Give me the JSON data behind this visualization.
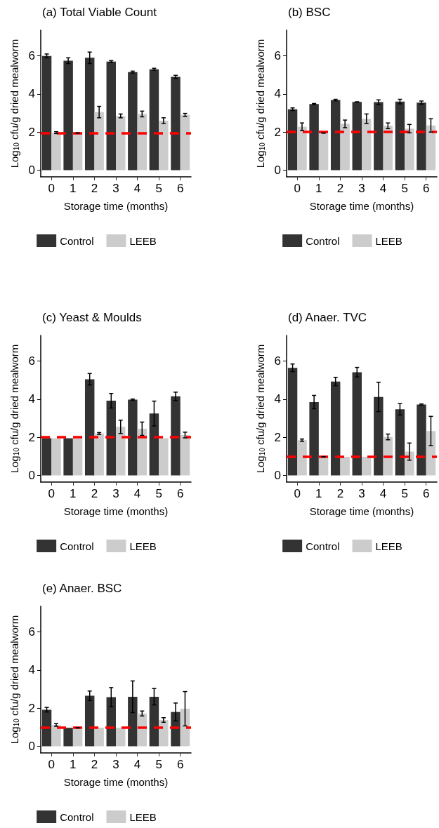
{
  "chart_data": [
    {
      "type": "bar",
      "title": "(a) Total Viable Count",
      "xlabel": "Storage time (months)",
      "ylabel": "Log$_{10}$ cfu/g dried mealworm",
      "categories": [
        "0",
        "1",
        "2",
        "3",
        "4",
        "5",
        "6"
      ],
      "series": [
        {
          "name": "Control",
          "color": "#333333",
          "values": [
            6.0,
            5.75,
            5.9,
            5.7,
            5.15,
            5.3,
            4.9
          ],
          "errors": [
            0.1,
            0.15,
            0.3,
            0.05,
            0.05,
            0.05,
            0.08
          ]
        },
        {
          "name": "LEEB",
          "color": "#cccccc",
          "values": [
            1.97,
            1.95,
            3.05,
            2.85,
            2.95,
            2.6,
            2.9
          ],
          "errors": [
            0.05,
            0.01,
            0.3,
            0.1,
            0.15,
            0.15,
            0.08
          ]
        }
      ],
      "ylim": [
        -0.35,
        7.35
      ],
      "yticks": [
        0,
        2,
        4,
        6
      ],
      "ref_lines": [
        {
          "axis": "y",
          "value": 1.95,
          "color": "#ff0000",
          "line_style": "dashed"
        }
      ],
      "legend": "bottom",
      "grid": false
    },
    {
      "type": "bar",
      "title": "(b) BSC",
      "xlabel": "Storage time (months)",
      "ylabel": "Log$_{10}$ cfu/g dried mealworm",
      "categories": [
        "0",
        "1",
        "2",
        "3",
        "4",
        "5",
        "6"
      ],
      "series": [
        {
          "name": "Control",
          "color": "#333333",
          "values": [
            3.2,
            3.47,
            3.68,
            3.58,
            3.57,
            3.6,
            3.55
          ],
          "errors": [
            0.07,
            0.03,
            0.04,
            0.01,
            0.12,
            0.12,
            0.08
          ]
        },
        {
          "name": "LEEB",
          "color": "#cccccc",
          "values": [
            2.28,
            1.95,
            2.43,
            2.7,
            2.33,
            2.18,
            2.35
          ],
          "errors": [
            0.2,
            0.01,
            0.2,
            0.25,
            0.15,
            0.22,
            0.35
          ]
        }
      ],
      "ylim": [
        -0.35,
        7.35
      ],
      "yticks": [
        0,
        2,
        4,
        6
      ],
      "ref_lines": [
        {
          "axis": "y",
          "value": 2.0,
          "color": "#ff0000",
          "line_style": "dashed"
        }
      ],
      "legend": "bottom",
      "grid": false
    },
    {
      "type": "bar",
      "title": "(c) Yeast & Moulds",
      "xlabel": "Storage time (months)",
      "ylabel": "Log$_{10}$ cfu/g dried mealworm",
      "categories": [
        "0",
        "1",
        "2",
        "3",
        "4",
        "5",
        "6"
      ],
      "series": [
        {
          "name": "Control",
          "color": "#333333",
          "values": [
            1.95,
            1.95,
            5.05,
            3.92,
            3.98,
            3.25,
            4.15
          ],
          "errors": [
            null,
            null,
            0.3,
            0.38,
            0.03,
            0.65,
            0.22
          ]
        },
        {
          "name": "LEEB",
          "color": "#cccccc",
          "values": [
            1.95,
            1.95,
            2.2,
            2.55,
            2.45,
            1.95,
            2.12
          ],
          "errors": [
            null,
            null,
            0.05,
            0.35,
            0.35,
            null,
            0.15
          ]
        }
      ],
      "ylim": [
        -0.35,
        7.35
      ],
      "yticks": [
        0,
        2,
        4,
        6
      ],
      "ref_lines": [
        {
          "axis": "y",
          "value": 2.0,
          "color": "#ff0000",
          "line_style": "dashed"
        }
      ],
      "legend": "bottom",
      "grid": false
    },
    {
      "type": "bar",
      "title": "(d) Anaer. TVC",
      "xlabel": "Storage time (months)",
      "ylabel": "Log$_{10}$ cfu/g dried mealworm",
      "categories": [
        "0",
        "1",
        "2",
        "3",
        "4",
        "5",
        "6"
      ],
      "series": [
        {
          "name": "Control",
          "color": "#333333",
          "values": [
            5.65,
            3.85,
            4.93,
            5.42,
            4.12,
            3.47,
            3.72
          ],
          "errors": [
            0.2,
            0.35,
            0.22,
            0.25,
            0.77,
            0.3,
            0.03
          ]
        },
        {
          "name": "LEEB",
          "color": "#cccccc",
          "values": [
            1.85,
            0.98,
            0.98,
            0.98,
            2.02,
            1.25,
            2.33
          ],
          "errors": [
            0.06,
            0.01,
            null,
            null,
            0.15,
            0.45,
            0.77
          ]
        }
      ],
      "ylim": [
        -0.35,
        7.35
      ],
      "yticks": [
        0,
        2,
        4,
        6
      ],
      "ref_lines": [
        {
          "axis": "y",
          "value": 1.0,
          "color": "#ff0000",
          "line_style": "dashed"
        }
      ],
      "legend": "bottom",
      "grid": false
    },
    {
      "type": "bar",
      "title": "(e) Anaer. BSC",
      "xlabel": "Storage time (months)",
      "ylabel": "Log$_{10}$ cfu/g dried mealworm",
      "categories": [
        "0",
        "1",
        "2",
        "3",
        "4",
        "5",
        "6"
      ],
      "series": [
        {
          "name": "Control",
          "color": "#333333",
          "values": [
            1.92,
            0.97,
            2.65,
            2.58,
            2.6,
            2.6,
            1.8
          ],
          "errors": [
            0.12,
            null,
            0.25,
            0.5,
            0.83,
            0.43,
            0.47
          ]
        },
        {
          "name": "LEEB",
          "color": "#cccccc",
          "values": [
            1.12,
            0.97,
            0.97,
            0.97,
            1.72,
            1.38,
            1.97
          ],
          "errors": [
            0.07,
            0.01,
            null,
            null,
            0.13,
            0.12,
            0.9
          ]
        }
      ],
      "ylim": [
        -0.35,
        7.35
      ],
      "yticks": [
        0,
        2,
        4,
        6
      ],
      "ref_lines": [
        {
          "axis": "y",
          "value": 1.0,
          "color": "#ff0000",
          "line_style": "dashed"
        }
      ],
      "legend": "bottom",
      "grid": false
    }
  ]
}
